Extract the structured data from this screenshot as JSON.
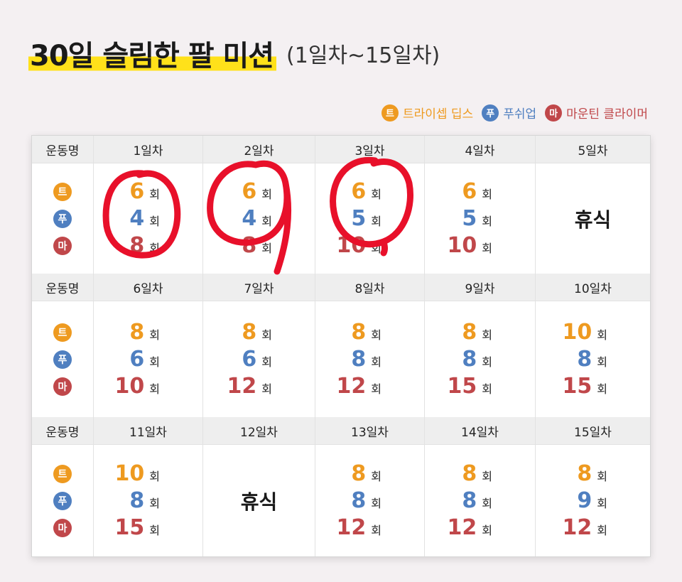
{
  "title": {
    "main": "30일 슬림한 팔 미션",
    "sub": "(1일차~15일차)"
  },
  "legend": [
    {
      "badge": "트",
      "label": "트라이셉 딥스",
      "color": "#ee9a20"
    },
    {
      "badge": "푸",
      "label": "푸쉬업",
      "color": "#4f7fc0"
    },
    {
      "badge": "마",
      "label": "마운틴 클라이머",
      "color": "#c0474a"
    }
  ],
  "table": {
    "header_label": "운동명",
    "unit": "회",
    "rest_label": "휴식",
    "weeks": [
      {
        "days": [
          {
            "name": "1일차",
            "tri": "6",
            "push": "4",
            "mountain": "8"
          },
          {
            "name": "2일차",
            "tri": "6",
            "push": "4",
            "mountain": "8"
          },
          {
            "name": "3일차",
            "tri": "6",
            "push": "5",
            "mountain": "10"
          },
          {
            "name": "4일차",
            "tri": "6",
            "push": "5",
            "mountain": "10"
          },
          {
            "name": "5일차",
            "rest": true
          }
        ]
      },
      {
        "days": [
          {
            "name": "6일차",
            "tri": "8",
            "push": "6",
            "mountain": "10"
          },
          {
            "name": "7일차",
            "tri": "8",
            "push": "6",
            "mountain": "12"
          },
          {
            "name": "8일차",
            "tri": "8",
            "push": "8",
            "mountain": "12"
          },
          {
            "name": "9일차",
            "tri": "8",
            "push": "8",
            "mountain": "15"
          },
          {
            "name": "10일차",
            "tri": "10",
            "push": "8",
            "mountain": "15"
          }
        ]
      },
      {
        "days": [
          {
            "name": "11일차",
            "tri": "10",
            "push": "8",
            "mountain": "15"
          },
          {
            "name": "12일차",
            "rest": true
          },
          {
            "name": "13일차",
            "tri": "8",
            "push": "8",
            "mountain": "12"
          },
          {
            "name": "14일차",
            "tri": "8",
            "push": "8",
            "mountain": "12"
          },
          {
            "name": "15일차",
            "tri": "8",
            "push": "9",
            "mountain": "12"
          }
        ]
      }
    ]
  },
  "annotation": {
    "color": "#e8102a"
  }
}
